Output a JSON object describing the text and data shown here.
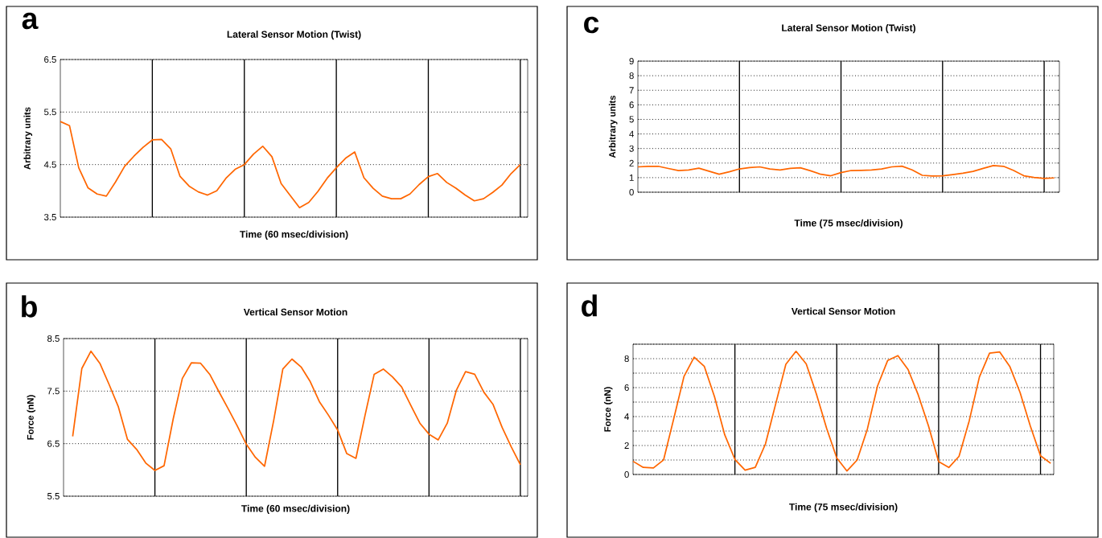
{
  "chart_data": [
    {
      "type": "line",
      "title": "Lateral Sensor Motion (Twist)",
      "xlabel": "Time (60 msec/division)",
      "ylabel": "Arbitrary units",
      "annotations": [
        "a"
      ],
      "categories": [
        null,
        null,
        null,
        null,
        null,
        null,
        null,
        null,
        null,
        null,
        null,
        null,
        null,
        null,
        null,
        null,
        null,
        null,
        null,
        null,
        null,
        null,
        null,
        null,
        null,
        null,
        null,
        null,
        null,
        null,
        null,
        null,
        null,
        null,
        null,
        null,
        null,
        null,
        null,
        null,
        null,
        null,
        null,
        null,
        null,
        null,
        null,
        null,
        null,
        null,
        null
      ],
      "series": [
        {
          "color": "#ff6600",
          "values": [
            5.32,
            5.24,
            4.44,
            4.06,
            3.94,
            3.9,
            4.17,
            4.47,
            4.66,
            4.83,
            4.97,
            4.98,
            4.8,
            4.28,
            4.09,
            3.98,
            3.92,
            4.0,
            4.24,
            4.41,
            4.5,
            4.7,
            4.85,
            4.65,
            4.14,
            3.91,
            3.68,
            3.78,
            3.99,
            4.24,
            4.44,
            4.62,
            4.74,
            4.25,
            4.05,
            3.9,
            3.85,
            3.85,
            3.94,
            4.12,
            4.27,
            4.33,
            4.16,
            4.05,
            3.92,
            3.81,
            3.85,
            3.97,
            4.11,
            4.33,
            4.5
          ]
        }
      ],
      "ylim": [
        3.5,
        6.5
      ],
      "yticks": [
        3.5,
        4.5,
        5.5,
        6.5
      ],
      "grid": true,
      "tick_labels": "y"
    },
    {
      "type": "line",
      "title": "Lateral Sensor Motion (Twist)",
      "xlabel": "Time (75 msec/division)",
      "ylabel": "Arbitrary units",
      "annotations": [
        "c"
      ],
      "categories": [
        null,
        null,
        null,
        null,
        null,
        null,
        null,
        null,
        null,
        null,
        null,
        null,
        null,
        null,
        null,
        null,
        null,
        null,
        null,
        null,
        null,
        null,
        null,
        null,
        null,
        null,
        null,
        null,
        null,
        null,
        null,
        null,
        null,
        null,
        null,
        null,
        null,
        null,
        null,
        null,
        null,
        null
      ],
      "series": [
        {
          "color": "#ff6600",
          "values": [
            1.74,
            1.78,
            1.78,
            1.63,
            1.48,
            1.53,
            1.65,
            1.44,
            1.24,
            1.4,
            1.6,
            1.69,
            1.74,
            1.6,
            1.53,
            1.64,
            1.68,
            1.47,
            1.23,
            1.13,
            1.35,
            1.49,
            1.5,
            1.52,
            1.59,
            1.74,
            1.79,
            1.53,
            1.16,
            1.11,
            1.12,
            1.21,
            1.31,
            1.43,
            1.64,
            1.83,
            1.78,
            1.49,
            1.13,
            1.02,
            0.94,
            0.98
          ]
        }
      ],
      "ylim": [
        0,
        9
      ],
      "yticks": [
        0,
        1,
        2,
        3,
        4,
        5,
        6,
        7,
        8,
        9
      ],
      "grid": true,
      "tick_labels": "y"
    },
    {
      "type": "line",
      "title": "Vertical Sensor Motion",
      "xlabel": "Time (60 msec/division)",
      "ylabel": "Force (nN)",
      "annotations": [
        "b"
      ],
      "categories": [
        null,
        null,
        null,
        null,
        null,
        null,
        null,
        null,
        null,
        null,
        null,
        null,
        null,
        null,
        null,
        null,
        null,
        null,
        null,
        null,
        null,
        null,
        null,
        null,
        null,
        null,
        null,
        null,
        null,
        null,
        null,
        null,
        null,
        null,
        null,
        null,
        null,
        null,
        null,
        null,
        null,
        null,
        null,
        null,
        null,
        null,
        null,
        null,
        null,
        null,
        null
      ],
      "series": [
        {
          "color": "#ff6600",
          "values": [
            null,
            6.64,
            7.93,
            8.26,
            8.02,
            7.62,
            7.2,
            6.58,
            6.39,
            6.13,
            5.99,
            6.08,
            6.97,
            7.74,
            8.04,
            8.03,
            7.82,
            7.49,
            7.17,
            6.84,
            6.49,
            6.24,
            6.07,
            6.94,
            7.92,
            8.11,
            7.96,
            7.68,
            7.3,
            7.04,
            6.76,
            6.31,
            6.22,
            7.04,
            7.82,
            7.92,
            7.77,
            7.58,
            7.23,
            6.89,
            6.68,
            6.57,
            6.89,
            7.52,
            7.87,
            7.82,
            7.48,
            7.25,
            6.81,
            6.44,
            6.1
          ]
        }
      ],
      "ylim": [
        5.5,
        8.5
      ],
      "yticks": [
        5.5,
        6.5,
        7.5,
        8.5
      ],
      "grid": true,
      "tick_labels": "y"
    },
    {
      "type": "line",
      "title": "Vertical Sensor Motion",
      "xlabel": "Time (75 msec/division)",
      "ylabel": "Force (nN)",
      "annotations": [
        "d"
      ],
      "categories": [
        null,
        null,
        null,
        null,
        null,
        null,
        null,
        null,
        null,
        null,
        null,
        null,
        null,
        null,
        null,
        null,
        null,
        null,
        null,
        null,
        null,
        null,
        null,
        null,
        null,
        null,
        null,
        null,
        null,
        null,
        null,
        null,
        null,
        null,
        null,
        null,
        null,
        null,
        null,
        null,
        null,
        null
      ],
      "series": [
        {
          "color": "#ff6600",
          "values": [
            0.91,
            0.49,
            0.45,
            1.01,
            3.87,
            6.77,
            8.1,
            7.46,
            5.36,
            2.74,
            1.04,
            0.3,
            0.49,
            2.11,
            4.87,
            7.61,
            8.51,
            7.64,
            5.56,
            3.19,
            1.14,
            0.24,
            1.0,
            3.13,
            6.11,
            7.88,
            8.21,
            7.25,
            5.49,
            3.36,
            0.89,
            0.48,
            1.25,
            3.7,
            6.73,
            8.38,
            8.46,
            7.44,
            5.65,
            3.35,
            1.29,
            0.77
          ]
        }
      ],
      "ylim": [
        0,
        9
      ],
      "yticks": [
        0,
        {
          "value": 1,
          "label": null
        },
        2,
        {
          "value": 3,
          "label": null
        },
        4,
        {
          "value": 5,
          "label": null
        },
        6,
        {
          "value": 7,
          "label": null
        },
        8,
        {
          "value": 9,
          "label": null
        }
      ],
      "grid": true,
      "tick_labels": "y"
    }
  ]
}
